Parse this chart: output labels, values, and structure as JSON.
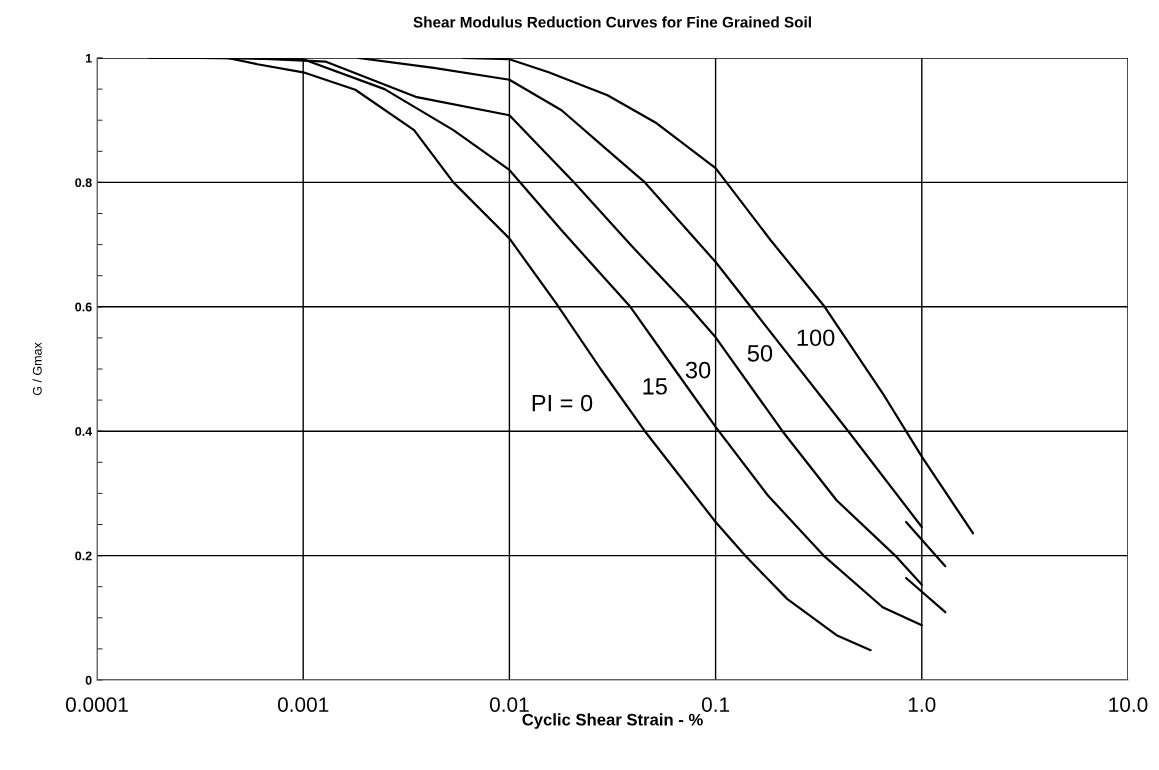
{
  "chart_data": {
    "type": "line",
    "title": "Shear Modulus Reduction Curves for Fine Grained Soil",
    "xlabel": "Cyclic Shear Strain - %",
    "ylabel": "G / Gmax",
    "log": "x",
    "grid": true,
    "marker": "none",
    "line_style": "solid",
    "xlim": [
      0.0001,
      10
    ],
    "xticks": [
      {
        "value": 0.0001,
        "label": "0.0001"
      },
      {
        "value": 0.001,
        "label": "0.001"
      },
      {
        "value": 0.01,
        "label": "0.01"
      },
      {
        "value": 0.1,
        "label": "0.1"
      },
      {
        "value": 1,
        "label": "1.0"
      },
      {
        "value": 10,
        "label": "10.0"
      }
    ],
    "ylim": [
      0,
      1
    ],
    "yticks": [
      0,
      0.2,
      0.4,
      0.6,
      0.8,
      1
    ],
    "series": [
      {
        "color": "#000000",
        "x": [
          0.000179,
          0.00043,
          0.0006,
          0.001,
          0.00179,
          0.00345,
          0.00535,
          0.01,
          0.0169,
          0.0277,
          0.0454,
          0.1,
          0.139,
          0.223,
          0.386,
          0.565
        ],
        "values": [
          1.0,
          1.0,
          0.99,
          0.977,
          0.949,
          0.884,
          0.8,
          0.71,
          0.605,
          0.5,
          0.4,
          0.254,
          0.2,
          0.13,
          0.072,
          0.048
        ]
      },
      {
        "color": "#000000",
        "x": [
          0.00031,
          0.001,
          0.00248,
          0.00535,
          0.01,
          0.0179,
          0.0286,
          0.0386,
          0.0631,
          0.1,
          0.179,
          0.334,
          0.646,
          1.0
        ],
        "values": [
          1.0,
          0.998,
          0.95,
          0.884,
          0.82,
          0.723,
          0.648,
          0.6,
          0.5,
          0.407,
          0.297,
          0.2,
          0.117,
          0.088
        ]
      },
      {
        "color": "#000000",
        "x": [
          0.00054,
          0.00129,
          0.00356,
          0.01,
          0.0206,
          0.0386,
          0.0743,
          0.1,
          0.211,
          0.386,
          0.743,
          1.0
        ],
        "values": [
          1.0,
          0.994,
          0.937,
          0.908,
          0.8,
          0.7,
          0.6,
          0.551,
          0.4,
          0.289,
          0.2,
          0.153
        ]
      },
      {
        "color": "#000000",
        "x": [
          0.00185,
          0.0043,
          0.01,
          0.0179,
          0.0299,
          0.0454,
          0.1,
          0.148,
          0.44,
          1.0
        ],
        "values": [
          1.0,
          0.984,
          0.965,
          0.916,
          0.852,
          0.8,
          0.672,
          0.6,
          0.4,
          0.246
        ]
      },
      {
        "color": "#000000",
        "x": [
          0.00597,
          0.01,
          0.0155,
          0.0299,
          0.0518,
          0.1,
          0.185,
          0.338,
          0.646,
          1.0,
          1.77
        ],
        "values": [
          1.0,
          0.998,
          0.977,
          0.94,
          0.895,
          0.823,
          0.707,
          0.6,
          0.461,
          0.359,
          0.236
        ]
      },
      {
        "color": "#000000",
        "x": [
          0.839,
          1.3
        ],
        "values": [
          0.254,
          0.183
        ]
      },
      {
        "color": "#000000",
        "x": [
          0.839,
          1.3
        ],
        "values": [
          0.164,
          0.109
        ]
      }
    ],
    "annotations": [
      "PI = 0",
      "15",
      "30",
      "50",
      "100"
    ]
  }
}
